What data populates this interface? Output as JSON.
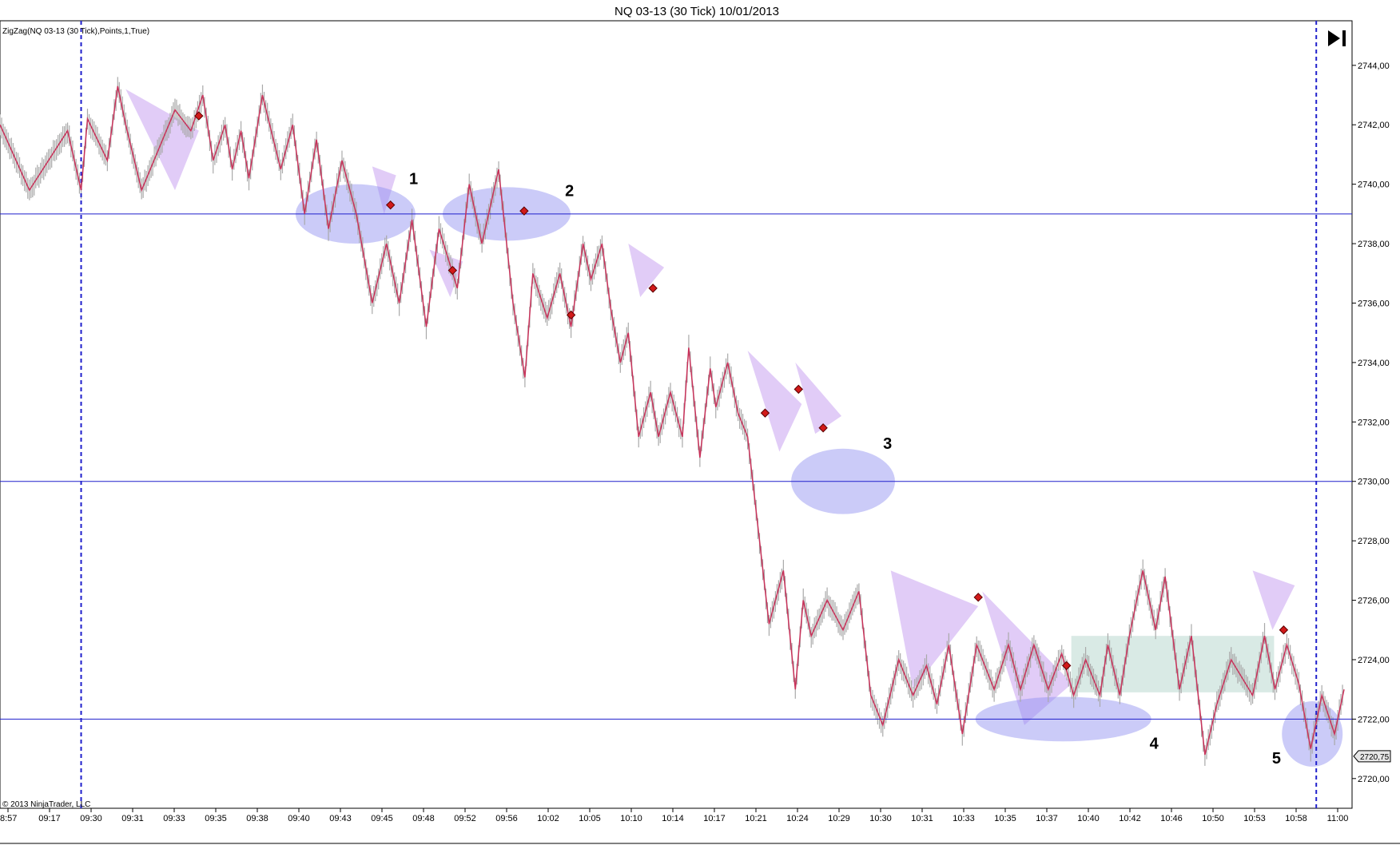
{
  "title": "NQ 03-13 (30 Tick)  10/01/2013",
  "indicator_label": "ZigZag(NQ 03-13 (30 Tick),Points,1,True)",
  "copyright": "© 2013 NinjaTrader, LLC",
  "last_price_label": "2720,75",
  "colors": {
    "zigzag": "#c8325a",
    "price_bars": "#a9a9a9",
    "hline": "#1f1fcc",
    "session_line": "#1f1fcc",
    "triangle_fill": "#c9a3f0",
    "ellipse_fill": "#8c8cf0",
    "range_box": "#b9d8cf",
    "marker": "#d11a1a"
  },
  "annotations": [
    "1",
    "2",
    "3",
    "4",
    "5"
  ],
  "chart_data": {
    "type": "line",
    "title": "NQ 03-13 (30 Tick)  10/01/2013",
    "xlabel": "",
    "ylabel": "",
    "ylim": [
      2719.0,
      2745.0
    ],
    "y_ticks": [
      2720,
      2722,
      2724,
      2726,
      2728,
      2730,
      2732,
      2734,
      2736,
      2738,
      2740,
      2742,
      2744
    ],
    "y_tick_labels": [
      "2720,00",
      "2722,00",
      "2724,00",
      "2726,00",
      "2728,00",
      "2730,00",
      "2732,00",
      "2734,00",
      "2736,00",
      "2738,00",
      "2740,00",
      "2742,00",
      "2744,00"
    ],
    "x_tick_labels": [
      "8:57",
      "09:17",
      "09:30",
      "09:31",
      "09:33",
      "09:35",
      "09:38",
      "09:40",
      "09:43",
      "09:45",
      "09:48",
      "09:52",
      "09:56",
      "10:02",
      "10:05",
      "10:10",
      "10:14",
      "10:17",
      "10:21",
      "10:24",
      "10:29",
      "10:30",
      "10:31",
      "10:33",
      "10:35",
      "10:37",
      "10:40",
      "10:42",
      "10:46",
      "10:50",
      "10:53",
      "10:58",
      "11:00"
    ],
    "x_range": [
      0,
      1700
    ],
    "horizontal_levels": [
      2739.0,
      2730.0,
      2722.0
    ],
    "session_breaks_x": [
      102,
      1655
    ],
    "zigzag": {
      "x": [
        0,
        37,
        85,
        102,
        110,
        135,
        148,
        158,
        178,
        220,
        240,
        255,
        268,
        283,
        292,
        303,
        313,
        330,
        353,
        368,
        383,
        398,
        413,
        430,
        448,
        468,
        486,
        502,
        518,
        536,
        552,
        575,
        590,
        606,
        627,
        645,
        660,
        670,
        688,
        704,
        718,
        733,
        743,
        757,
        768,
        780,
        790,
        803,
        818,
        828,
        843,
        858,
        866,
        880,
        893,
        900,
        915,
        928,
        940,
        955,
        967,
        985,
        1000,
        1010,
        1020,
        1040,
        1060,
        1080,
        1095,
        1110,
        1130,
        1148,
        1165,
        1178,
        1193,
        1210,
        1228,
        1250,
        1268,
        1283,
        1300,
        1318,
        1335,
        1350,
        1365,
        1383,
        1393,
        1408,
        1420,
        1437,
        1453,
        1465,
        1483,
        1498,
        1515,
        1530,
        1548,
        1575,
        1590,
        1603,
        1618,
        1633,
        1648,
        1662,
        1678,
        1690
      ],
      "y": [
        2742.0,
        2739.8,
        2741.8,
        2739.8,
        2742.2,
        2740.8,
        2743.3,
        2742.0,
        2739.8,
        2742.5,
        2741.8,
        2743.0,
        2740.8,
        2742.0,
        2740.5,
        2741.8,
        2740.2,
        2743.0,
        2740.5,
        2742.0,
        2739.0,
        2741.5,
        2738.5,
        2740.8,
        2739.0,
        2736.0,
        2738.0,
        2736.0,
        2738.8,
        2735.2,
        2738.5,
        2736.5,
        2740.0,
        2738.0,
        2740.5,
        2736.0,
        2733.5,
        2737.0,
        2735.5,
        2737.0,
        2735.2,
        2738.0,
        2736.8,
        2738.0,
        2735.8,
        2734.0,
        2735.0,
        2731.5,
        2733.0,
        2731.5,
        2733.0,
        2731.5,
        2734.5,
        2730.8,
        2733.8,
        2732.5,
        2734.0,
        2732.3,
        2731.5,
        2728.0,
        2725.2,
        2727.0,
        2723.0,
        2726.0,
        2724.8,
        2726.0,
        2725.0,
        2726.3,
        2722.8,
        2721.8,
        2724.0,
        2722.8,
        2723.8,
        2722.5,
        2724.5,
        2721.5,
        2724.5,
        2723.0,
        2724.5,
        2723.0,
        2724.5,
        2723.0,
        2724.2,
        2722.8,
        2724.0,
        2722.8,
        2724.5,
        2722.8,
        2724.8,
        2727.0,
        2725.0,
        2726.8,
        2723.0,
        2724.8,
        2720.8,
        2722.5,
        2724.0,
        2722.8,
        2724.8,
        2723.0,
        2724.5,
        2723.2,
        2721.0,
        2722.8,
        2721.5,
        2723.0
      ]
    },
    "signal_markers": [
      {
        "x": 250,
        "y": 2742.3
      },
      {
        "x": 491,
        "y": 2739.3
      },
      {
        "x": 569,
        "y": 2737.1
      },
      {
        "x": 659,
        "y": 2739.1
      },
      {
        "x": 718,
        "y": 2735.6
      },
      {
        "x": 821,
        "y": 2736.5
      },
      {
        "x": 962,
        "y": 2732.3
      },
      {
        "x": 1004,
        "y": 2733.1
      },
      {
        "x": 1035,
        "y": 2731.8
      },
      {
        "x": 1230,
        "y": 2726.1
      },
      {
        "x": 1341,
        "y": 2723.8
      },
      {
        "x": 1614,
        "y": 2725.0
      }
    ],
    "triangles": [
      {
        "x": [
          158,
          250,
          220
        ],
        "y": [
          2743.2,
          2741.8,
          2739.8
        ]
      },
      {
        "x": [
          468,
          498,
          483
        ],
        "y": [
          2740.6,
          2740.3,
          2739.0
        ]
      },
      {
        "x": [
          540,
          582,
          566
        ],
        "y": [
          2737.8,
          2737.4,
          2736.2
        ]
      },
      {
        "x": [
          790,
          835,
          805
        ],
        "y": [
          2738.0,
          2737.2,
          2736.2
        ]
      },
      {
        "x": [
          940,
          1008,
          980
        ],
        "y": [
          2734.4,
          2732.6,
          2731.0
        ]
      },
      {
        "x": [
          1000,
          1058,
          1025
        ],
        "y": [
          2734.0,
          2732.2,
          2731.6
        ]
      },
      {
        "x": [
          1120,
          1230,
          1148
        ],
        "y": [
          2727.0,
          2725.8,
          2723.0
        ]
      },
      {
        "x": [
          1235,
          1348,
          1288
        ],
        "y": [
          2726.3,
          2723.2,
          2721.8
        ]
      },
      {
        "x": [
          1575,
          1628,
          1600
        ],
        "y": [
          2727.0,
          2726.5,
          2725.0
        ]
      }
    ],
    "ellipses": [
      {
        "cx": 447,
        "cy": 2739.0,
        "rx": 75,
        "ry": 1.0
      },
      {
        "cx": 637,
        "cy": 2739.0,
        "rx": 80,
        "ry": 0.9
      },
      {
        "cx": 1060,
        "cy": 2730.0,
        "rx": 65,
        "ry": 1.1
      },
      {
        "cx": 1337,
        "cy": 2722.0,
        "rx": 110,
        "ry": 0.75
      },
      {
        "cx": 1650,
        "cy": 2721.5,
        "rx": 38,
        "ry": 1.1
      }
    ],
    "range_box": {
      "x0": 1347,
      "x1": 1602,
      "y0": 2722.9,
      "y1": 2724.8
    },
    "annotation_points": [
      {
        "label": "1",
        "x": 520,
        "y": 2740.0
      },
      {
        "label": "2",
        "x": 716,
        "y": 2739.6
      },
      {
        "label": "3",
        "x": 1116,
        "y": 2731.1
      },
      {
        "label": "4",
        "x": 1451,
        "y": 2721.0
      },
      {
        "label": "5",
        "x": 1605,
        "y": 2720.5
      }
    ],
    "last_price": 2720.75
  }
}
